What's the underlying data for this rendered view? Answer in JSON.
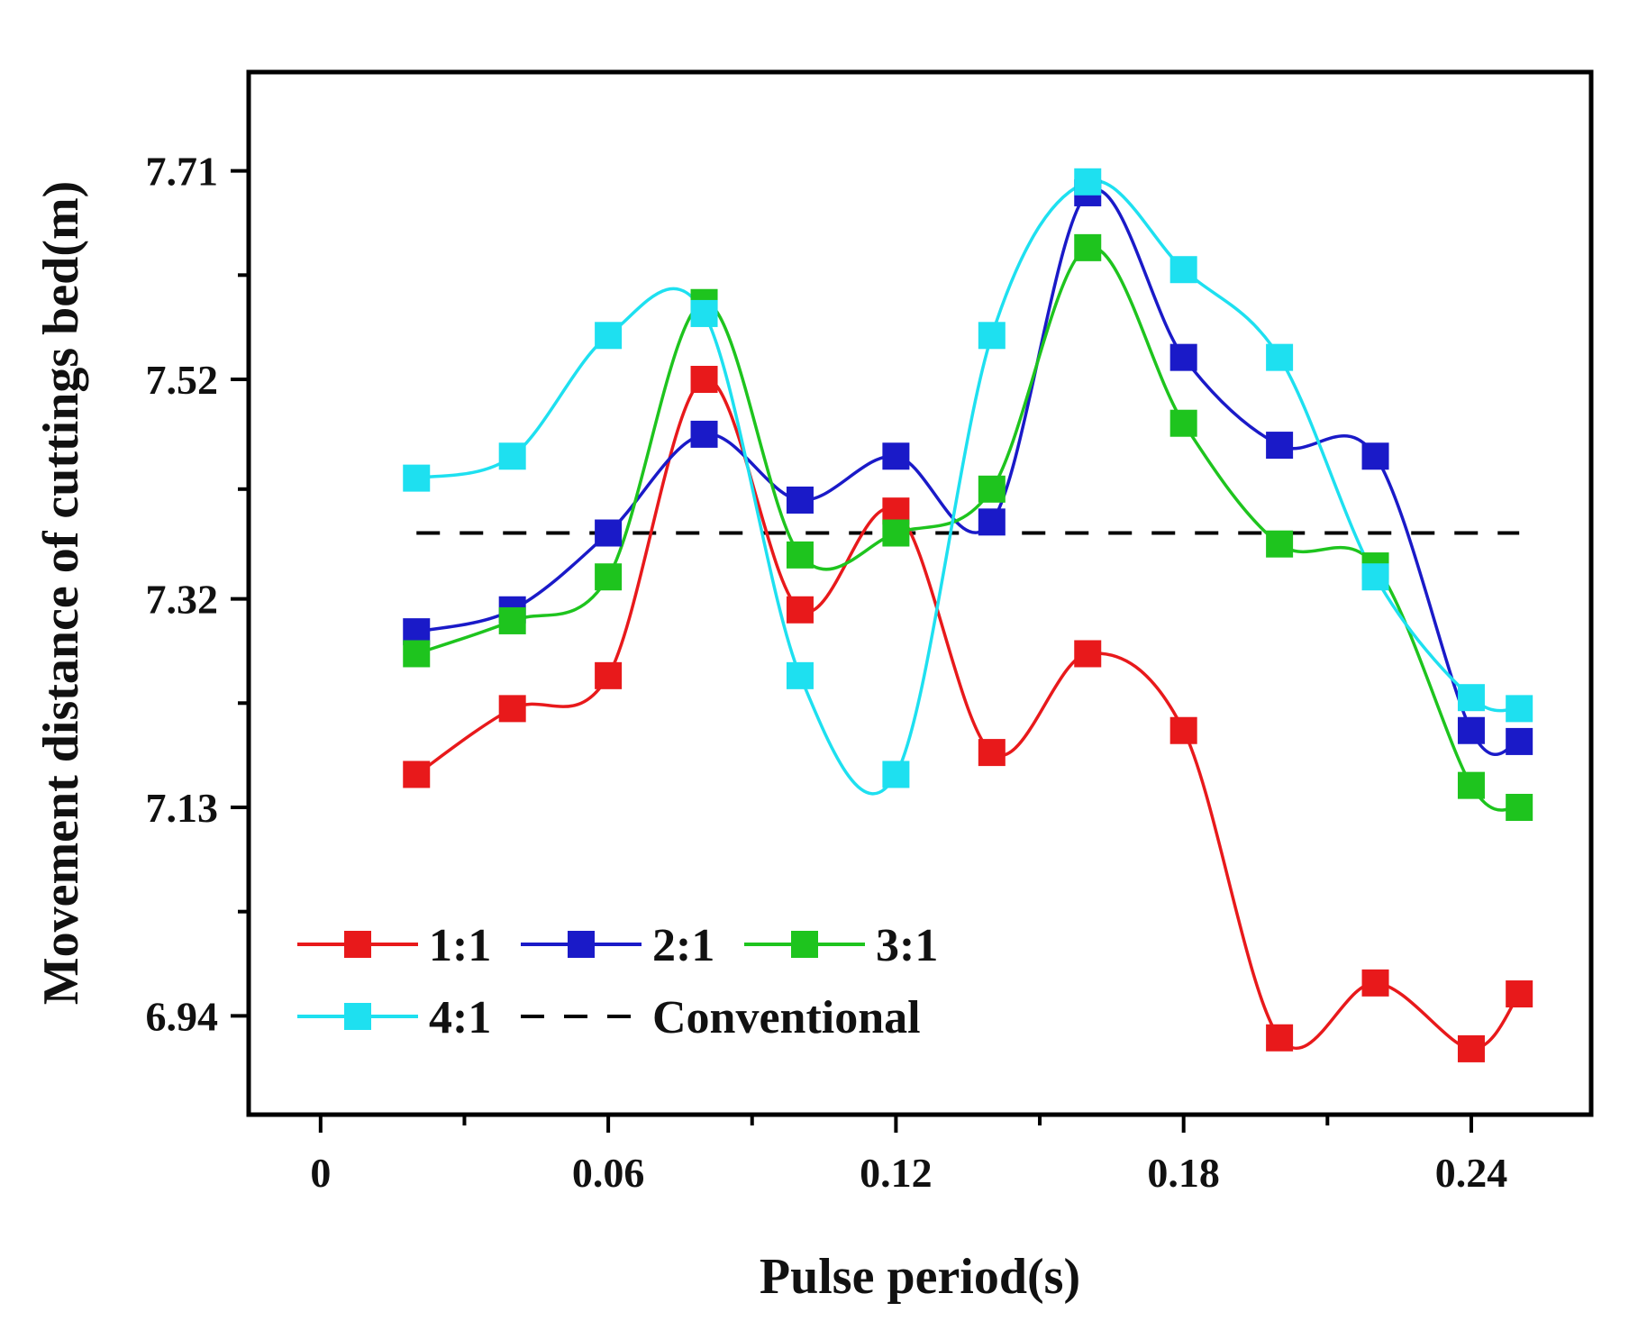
{
  "chart_data": {
    "type": "line",
    "xlabel": "Pulse period(s)",
    "ylabel": "Movement distance of cuttings bed(m)",
    "xlim": [
      -0.015,
      0.265
    ],
    "ylim": [
      6.85,
      7.8
    ],
    "x_ticks": [
      0,
      0.06,
      0.12,
      0.18,
      0.24
    ],
    "x_tick_labels": [
      "0",
      "0.06",
      "0.12",
      "0.18",
      "0.24"
    ],
    "y_ticks": [
      6.94,
      7.13,
      7.32,
      7.52,
      7.71
    ],
    "y_tick_labels": [
      "6.94",
      "7.13",
      "7.32",
      "7.52",
      "7.71"
    ],
    "grid": false,
    "legend_position": "bottom-left",
    "x": [
      0.02,
      0.04,
      0.06,
      0.08,
      0.1,
      0.12,
      0.14,
      0.16,
      0.18,
      0.2,
      0.22,
      0.24,
      0.25
    ],
    "series": [
      {
        "name": "1:1",
        "color": "#e8191b",
        "marker": "square",
        "line_style": "solid",
        "values": [
          7.16,
          7.22,
          7.25,
          7.52,
          7.31,
          7.4,
          7.18,
          7.27,
          7.2,
          6.92,
          6.97,
          6.91,
          6.96
        ]
      },
      {
        "name": "2:1",
        "color": "#1a1ac8",
        "marker": "square",
        "line_style": "solid",
        "values": [
          7.29,
          7.31,
          7.38,
          7.47,
          7.41,
          7.45,
          7.39,
          7.69,
          7.54,
          7.46,
          7.45,
          7.2,
          7.19
        ]
      },
      {
        "name": "3:1",
        "color": "#1ec41e",
        "marker": "square",
        "line_style": "solid",
        "values": [
          7.27,
          7.3,
          7.34,
          7.59,
          7.36,
          7.38,
          7.42,
          7.64,
          7.48,
          7.37,
          7.35,
          7.15,
          7.13
        ]
      },
      {
        "name": "4:1",
        "color": "#1ee0f0",
        "marker": "square",
        "line_style": "solid",
        "values": [
          7.43,
          7.45,
          7.56,
          7.58,
          7.25,
          7.16,
          7.56,
          7.7,
          7.62,
          7.54,
          7.34,
          7.23,
          7.22
        ]
      },
      {
        "name": "Conventional",
        "color": "#000000",
        "marker": "none",
        "line_style": "dashed",
        "x": [
          0.02,
          0.25
        ],
        "values": [
          7.38,
          7.38
        ]
      }
    ]
  }
}
